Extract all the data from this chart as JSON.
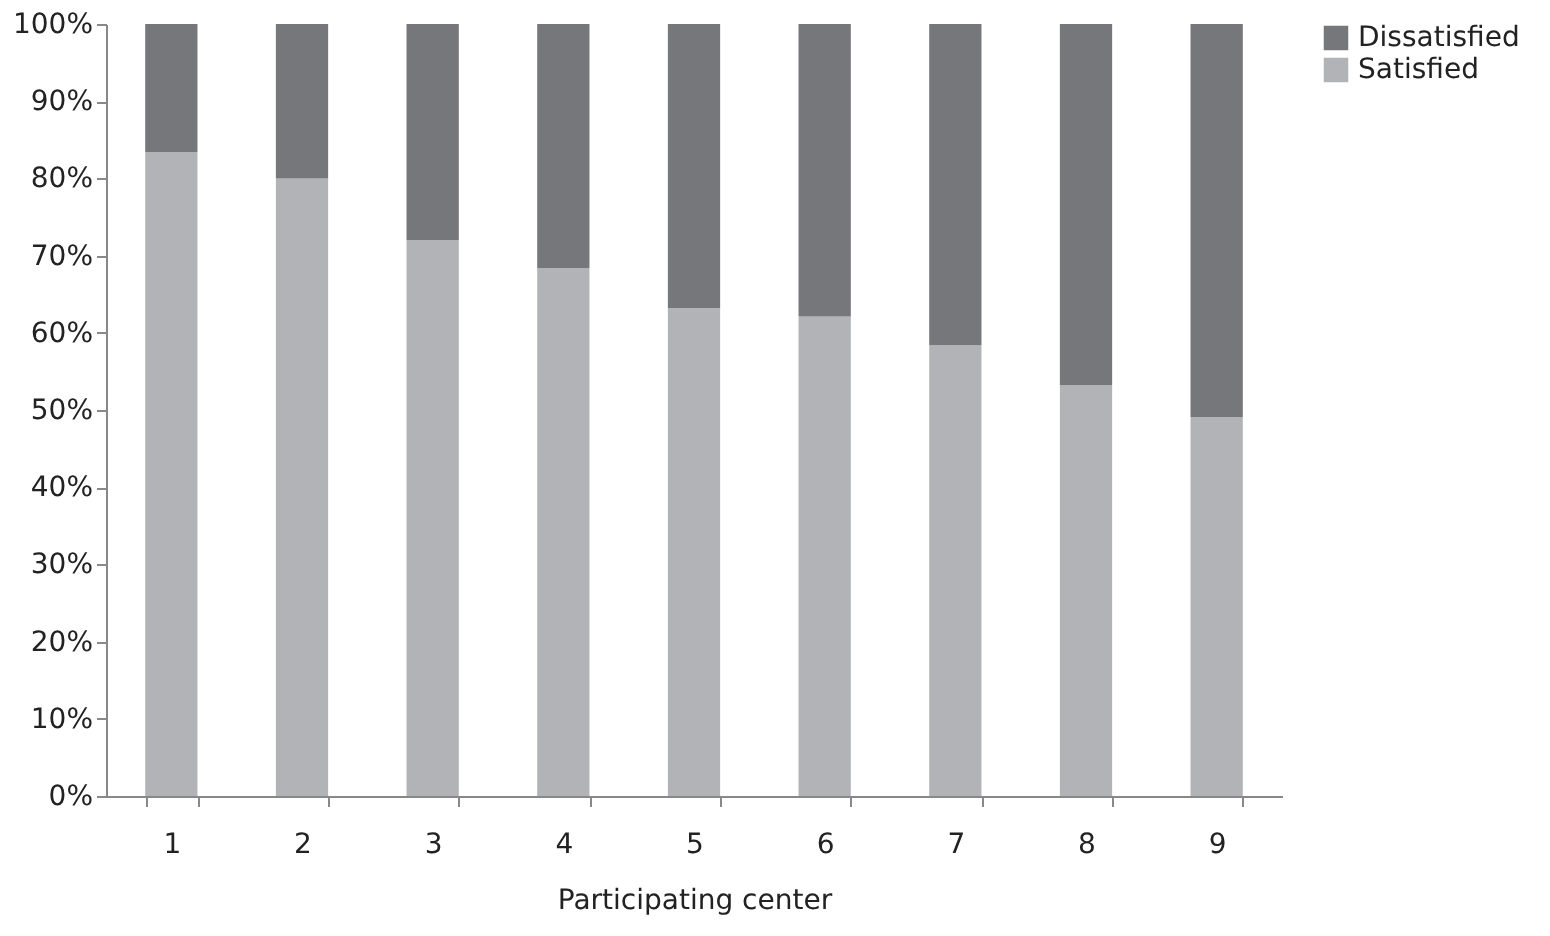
{
  "chart_data": {
    "type": "bar",
    "stacked": true,
    "xlabel": "Participating center",
    "categories": [
      "1",
      "2",
      "3",
      "4",
      "5",
      "6",
      "7",
      "8",
      "9"
    ],
    "series": [
      {
        "name": "Satisfied",
        "color": "#b2b3b6",
        "values": [
          83.4,
          80.0,
          72.0,
          68.4,
          63.2,
          62.1,
          58.4,
          53.2,
          49.1
        ]
      },
      {
        "name": "Dissatisfied",
        "color": "#76777b",
        "values": [
          16.6,
          20.0,
          28.0,
          31.6,
          36.8,
          37.9,
          41.6,
          46.8,
          50.9
        ]
      }
    ],
    "ylim": [
      0,
      100
    ],
    "yticks": [
      {
        "value": 0,
        "label": "0%"
      },
      {
        "value": 10,
        "label": "10%"
      },
      {
        "value": 20,
        "label": "20%"
      },
      {
        "value": 30,
        "label": "30%"
      },
      {
        "value": 40,
        "label": "40%"
      },
      {
        "value": 50,
        "label": "50%"
      },
      {
        "value": 60,
        "label": "60%"
      },
      {
        "value": 70,
        "label": "70%"
      },
      {
        "value": 80,
        "label": "80%"
      },
      {
        "value": 90,
        "label": "90%"
      },
      {
        "value": 100,
        "label": "100%"
      }
    ],
    "grid": false,
    "legend": "right"
  }
}
